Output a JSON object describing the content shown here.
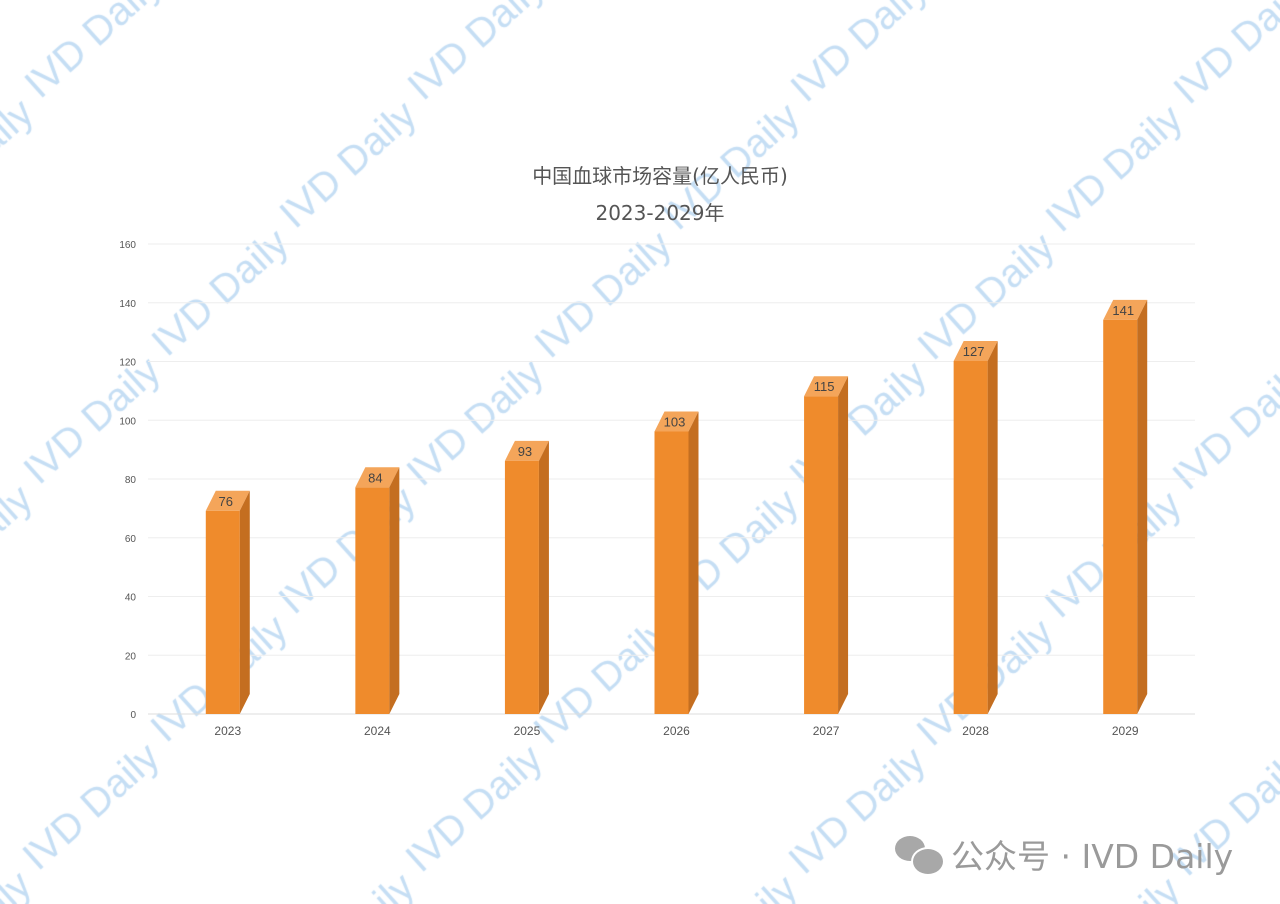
{
  "chart_data": {
    "type": "bar",
    "title": "中国血球市场容量(亿人民币)",
    "subtitle": "2023-2029年",
    "categories": [
      "2023",
      "2024",
      "2025",
      "2026",
      "2027",
      "2028",
      "2029"
    ],
    "values": [
      76,
      84,
      93,
      103,
      115,
      127,
      141
    ],
    "yticks": [
      0,
      20,
      40,
      60,
      80,
      100,
      120,
      140,
      160
    ],
    "ylim": [
      0,
      160
    ],
    "grid": true,
    "style": "3d-column",
    "colors": {
      "front": "#ef8b2c",
      "top": "#f4a55a",
      "side": "#c46e20",
      "grid": "#eeeeee",
      "watermark": "#c5def4"
    }
  },
  "watermark": "IVD Daily",
  "footer": {
    "icon": "wechat-icon",
    "label": "公众号 · IVD Daily"
  }
}
